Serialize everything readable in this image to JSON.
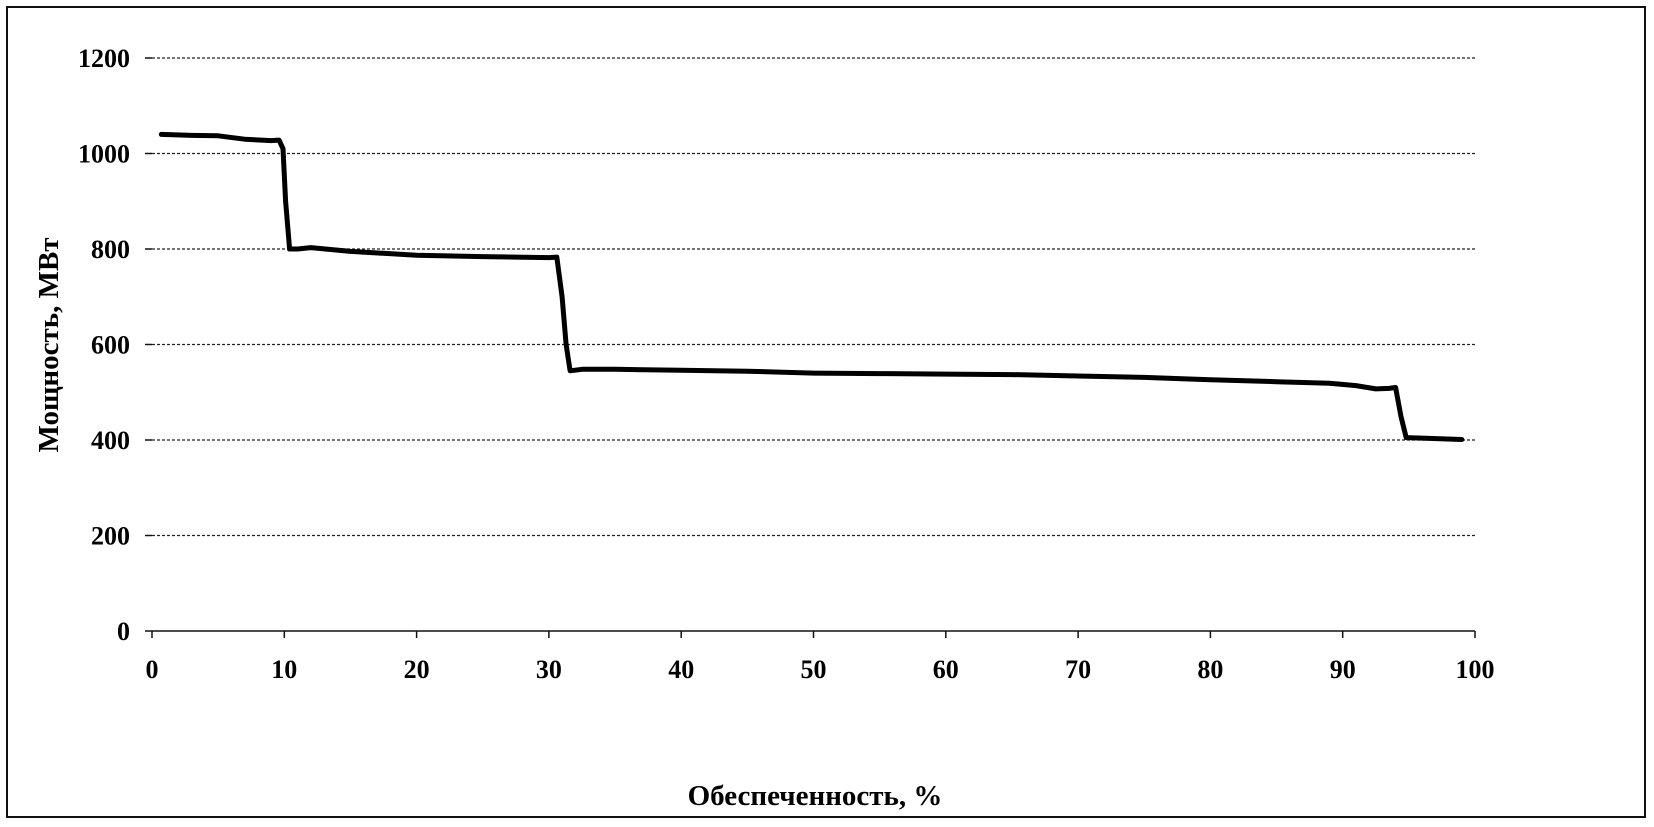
{
  "chart_data": {
    "type": "line",
    "title": "",
    "xlabel": "Обеспеченность, %",
    "ylabel": "Мощность, МВт",
    "xlim": [
      0,
      100
    ],
    "ylim": [
      0,
      1200
    ],
    "x_ticks": [
      0,
      10,
      20,
      30,
      40,
      50,
      60,
      70,
      80,
      90,
      100
    ],
    "y_ticks": [
      0,
      200,
      400,
      600,
      800,
      1000,
      1200
    ],
    "x_tick_labels": [
      "0",
      "10",
      "20",
      "30",
      "40",
      "50",
      "60",
      "70",
      "80",
      "90",
      "100"
    ],
    "y_tick_labels": [
      "0",
      "200",
      "400",
      "600",
      "800",
      "1000",
      "1200"
    ],
    "grid": true,
    "legend": "none",
    "series": [
      {
        "color": "#000000",
        "points": [
          [
            0.7,
            1040
          ],
          [
            3,
            1038
          ],
          [
            5,
            1037
          ],
          [
            7,
            1030
          ],
          [
            9,
            1027
          ],
          [
            9.6,
            1028
          ],
          [
            9.9,
            1010
          ],
          [
            10.1,
            900
          ],
          [
            10.4,
            800
          ],
          [
            11,
            800
          ],
          [
            12,
            803
          ],
          [
            15,
            795
          ],
          [
            20,
            787
          ],
          [
            25,
            784
          ],
          [
            30,
            782
          ],
          [
            30.6,
            783
          ],
          [
            31,
            700
          ],
          [
            31.3,
            600
          ],
          [
            31.6,
            545
          ],
          [
            32.5,
            548
          ],
          [
            35,
            548
          ],
          [
            40,
            546
          ],
          [
            45,
            544
          ],
          [
            50,
            540
          ],
          [
            55,
            539
          ],
          [
            60,
            538
          ],
          [
            65,
            537
          ],
          [
            70,
            534
          ],
          [
            75,
            531
          ],
          [
            80,
            526
          ],
          [
            85,
            522
          ],
          [
            89,
            519
          ],
          [
            91,
            514
          ],
          [
            92.5,
            507
          ],
          [
            93.5,
            508
          ],
          [
            94,
            510
          ],
          [
            94.4,
            450
          ],
          [
            94.8,
            405
          ],
          [
            96,
            404
          ],
          [
            99,
            401
          ]
        ]
      }
    ]
  }
}
